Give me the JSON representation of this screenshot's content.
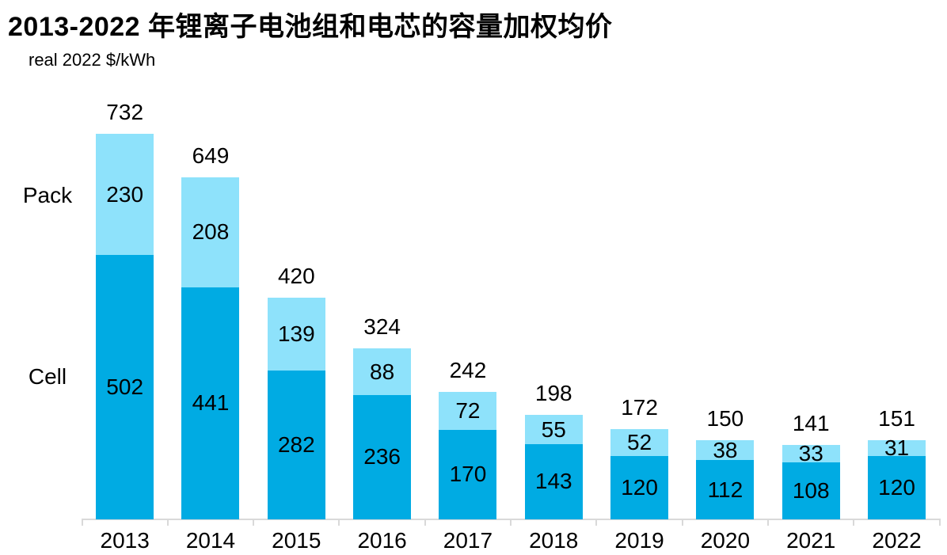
{
  "chart_data": {
    "type": "bar",
    "stacked": true,
    "title": "2013-2022 年锂离子电池组和电芯的容量加权均价",
    "unit_label": "real 2022 $/kWh",
    "categories": [
      "2013",
      "2014",
      "2015",
      "2016",
      "2017",
      "2018",
      "2019",
      "2020",
      "2021",
      "2022"
    ],
    "series": [
      {
        "name": "Cell",
        "color": "#00ABE3",
        "values": [
          502,
          441,
          282,
          236,
          170,
          143,
          120,
          112,
          108,
          120
        ]
      },
      {
        "name": "Pack",
        "color": "#8EE2FB",
        "values": [
          230,
          208,
          139,
          88,
          72,
          55,
          52,
          38,
          33,
          31
        ]
      }
    ],
    "totals": [
      732,
      649,
      420,
      324,
      242,
      198,
      172,
      150,
      141,
      151
    ],
    "ylim": [
      0,
      760
    ],
    "xlabel": "",
    "ylabel": "real 2022 $/kWh",
    "grid": false,
    "legend_position": "left-of-first-bar",
    "axis_color": "#D9D9D9",
    "text_color": "#000000"
  }
}
